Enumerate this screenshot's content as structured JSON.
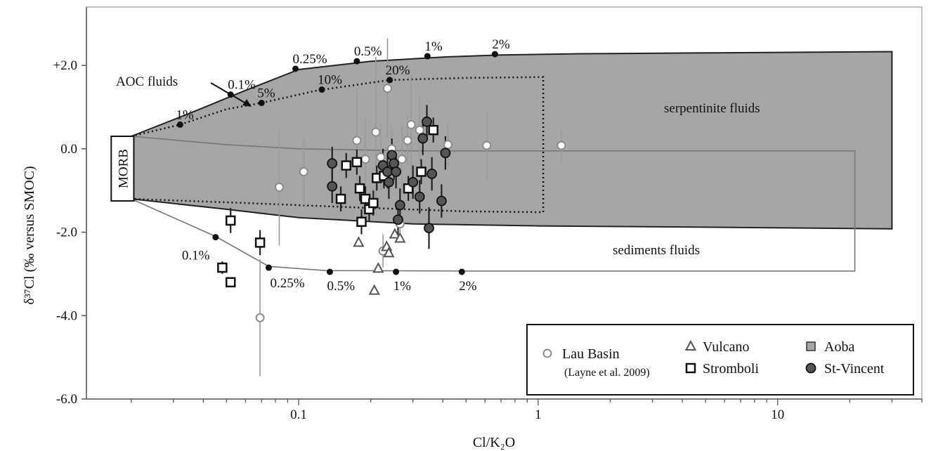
{
  "chart_data": {
    "type": "scatter",
    "xscale": "log",
    "xlim": [
      0.013,
      40
    ],
    "ylim": [
      -6.0,
      3.4
    ],
    "xlabel": "Cl/K₂O",
    "ylabel": "δ³⁷Cl (‰ versus SMOC)",
    "x_ticks": [
      {
        "value": 0.1,
        "label": "0.1"
      },
      {
        "value": 1,
        "label": "1"
      },
      {
        "value": 10,
        "label": "10"
      }
    ],
    "y_ticks": [
      {
        "value": 2.0,
        "label": "+2.0"
      },
      {
        "value": 0.0,
        "label": "0.0"
      },
      {
        "value": -2.0,
        "label": "-2.0"
      },
      {
        "value": -4.0,
        "label": "-4.0"
      },
      {
        "value": -6.0,
        "label": "-6.0"
      }
    ],
    "morb_label": "MORB",
    "morb_box": {
      "x": [
        0.0165,
        0.0205
      ],
      "y": [
        -1.25,
        0.3
      ]
    },
    "regions": [
      {
        "name": "serpentinite fluids",
        "label": "serpentinite fluids",
        "fill": "#a6a6a6",
        "upper": [
          [
            0.02,
            0.3
          ],
          [
            0.035,
            0.85
          ],
          [
            0.06,
            1.4
          ],
          [
            0.1,
            1.9
          ],
          [
            0.2,
            2.1
          ],
          [
            0.4,
            2.2
          ],
          [
            0.7,
            2.25
          ],
          [
            1.5,
            2.28
          ],
          [
            5,
            2.3
          ],
          [
            30,
            2.33
          ]
        ],
        "lower": [
          [
            0.02,
            -1.2
          ],
          [
            0.05,
            -1.45
          ],
          [
            0.1,
            -1.65
          ],
          [
            0.3,
            -1.8
          ],
          [
            1,
            -1.85
          ],
          [
            5,
            -1.88
          ],
          [
            30,
            -1.92
          ]
        ]
      },
      {
        "name": "AOC fluids",
        "label": "AOC fluids",
        "upper": [
          [
            0.02,
            0.3
          ],
          [
            0.032,
            0.58
          ],
          [
            0.05,
            0.95
          ],
          [
            0.07,
            1.1
          ],
          [
            0.12,
            1.4
          ],
          [
            0.24,
            1.65
          ],
          [
            0.5,
            1.7
          ],
          [
            1.05,
            1.72
          ]
        ],
        "lower": [
          [
            0.02,
            -1.2
          ],
          [
            0.06,
            -1.3
          ],
          [
            0.2,
            -1.42
          ],
          [
            0.5,
            -1.5
          ],
          [
            1.05,
            -1.52
          ]
        ]
      },
      {
        "name": "sediments fluids",
        "label": "sediments fluids",
        "upper": [
          [
            0.02,
            0.3
          ],
          [
            0.05,
            0.1
          ],
          [
            0.1,
            0.0
          ],
          [
            0.3,
            -0.05
          ],
          [
            1,
            -0.05
          ],
          [
            21,
            -0.05
          ]
        ],
        "lower": [
          [
            0.02,
            -1.2
          ],
          [
            0.045,
            -2.1
          ],
          [
            0.075,
            -2.82
          ],
          [
            0.13,
            -2.92
          ],
          [
            0.5,
            -2.93
          ],
          [
            21,
            -2.93
          ]
        ]
      }
    ],
    "mixing_points": [
      {
        "curve": "serpentinite",
        "label": "0.1%",
        "x": 0.052,
        "y": 1.3
      },
      {
        "curve": "serpentinite",
        "label": "0.25%",
        "x": 0.097,
        "y": 1.92
      },
      {
        "curve": "serpentinite",
        "label": "0.5%",
        "x": 0.175,
        "y": 2.1
      },
      {
        "curve": "serpentinite",
        "label": "1%",
        "x": 0.345,
        "y": 2.22
      },
      {
        "curve": "serpentinite",
        "label": "2%",
        "x": 0.66,
        "y": 2.27
      },
      {
        "curve": "AOC",
        "label": "1%",
        "x": 0.032,
        "y": 0.58
      },
      {
        "curve": "AOC",
        "label": "5%",
        "x": 0.07,
        "y": 1.1
      },
      {
        "curve": "AOC",
        "label": "10%",
        "x": 0.125,
        "y": 1.42
      },
      {
        "curve": "AOC",
        "label": "20%",
        "x": 0.24,
        "y": 1.65
      },
      {
        "curve": "sediments",
        "label": "0.1%",
        "x": 0.045,
        "y": -2.12
      },
      {
        "curve": "sediments",
        "label": "0.25%",
        "x": 0.075,
        "y": -2.85
      },
      {
        "curve": "sediments",
        "label": "0.5%",
        "x": 0.135,
        "y": -2.95
      },
      {
        "curve": "sediments",
        "label": "1%",
        "x": 0.255,
        "y": -2.95
      },
      {
        "curve": "sediments",
        "label": "2%",
        "x": 0.48,
        "y": -2.95
      }
    ],
    "series": [
      {
        "name": "Lau Basin",
        "note": "(Layne et al. 2009)",
        "marker": "circle-open",
        "color": "#8c8c8c",
        "points": [
          {
            "x": 0.069,
            "y": -4.05,
            "err": 1.4
          },
          {
            "x": 0.083,
            "y": -0.92,
            "err": 1.4
          },
          {
            "x": 0.105,
            "y": -0.55,
            "err": 0.8
          },
          {
            "x": 0.175,
            "y": 0.2,
            "err": 1.2
          },
          {
            "x": 0.19,
            "y": -0.25,
            "err": 1.0
          },
          {
            "x": 0.21,
            "y": 0.4,
            "err": 1.8
          },
          {
            "x": 0.22,
            "y": -0.2,
            "err": 0.8
          },
          {
            "x": 0.225,
            "y": -2.45,
            "err": 0.4
          },
          {
            "x": 0.235,
            "y": 1.45,
            "err": 1.2
          },
          {
            "x": 0.245,
            "y": 0.0,
            "err": 0.5
          },
          {
            "x": 0.265,
            "y": -1.8,
            "err": 0.4
          },
          {
            "x": 0.27,
            "y": -0.25,
            "err": 0.8
          },
          {
            "x": 0.285,
            "y": 0.2,
            "err": 0.6
          },
          {
            "x": 0.295,
            "y": 0.58,
            "err": 1.2
          },
          {
            "x": 0.32,
            "y": 0.45,
            "err": 0.8
          },
          {
            "x": 0.42,
            "y": 0.1,
            "err": 0.5
          },
          {
            "x": 0.61,
            "y": 0.08,
            "err": 0.8
          },
          {
            "x": 1.25,
            "y": 0.08,
            "err": 0.4
          }
        ]
      },
      {
        "name": "Vulcano",
        "marker": "triangle-open",
        "color": "#555555",
        "points": [
          {
            "x": 0.178,
            "y": -2.25
          },
          {
            "x": 0.207,
            "y": -3.4
          },
          {
            "x": 0.215,
            "y": -2.87
          },
          {
            "x": 0.233,
            "y": -2.35
          },
          {
            "x": 0.238,
            "y": -2.5
          },
          {
            "x": 0.252,
            "y": -2.05
          },
          {
            "x": 0.265,
            "y": -2.15
          }
        ]
      },
      {
        "name": "Stromboli",
        "marker": "square-open",
        "color": "#111111",
        "points": [
          {
            "x": 0.048,
            "y": -2.85,
            "err": 0.15
          },
          {
            "x": 0.052,
            "y": -3.2,
            "err": 0.1
          },
          {
            "x": 0.052,
            "y": -1.72,
            "err": 0.3
          },
          {
            "x": 0.069,
            "y": -2.25,
            "err": 0.3
          },
          {
            "x": 0.15,
            "y": -1.2,
            "err": 0.3
          },
          {
            "x": 0.158,
            "y": -0.4,
            "err": 0.3
          },
          {
            "x": 0.175,
            "y": -0.32,
            "err": 0.3
          },
          {
            "x": 0.18,
            "y": -0.95,
            "err": 0.3
          },
          {
            "x": 0.183,
            "y": -1.75,
            "err": 0.3
          },
          {
            "x": 0.19,
            "y": -1.2,
            "err": 0.3
          },
          {
            "x": 0.197,
            "y": -1.45,
            "err": 0.3
          },
          {
            "x": 0.205,
            "y": -1.3,
            "err": 0.3
          },
          {
            "x": 0.212,
            "y": -0.7,
            "err": 0.3
          },
          {
            "x": 0.227,
            "y": -0.65,
            "err": 0.3
          },
          {
            "x": 0.287,
            "y": -0.95,
            "err": 0.3
          },
          {
            "x": 0.325,
            "y": -0.55,
            "err": 0.3
          },
          {
            "x": 0.365,
            "y": 0.45,
            "err": 0.3
          }
        ]
      },
      {
        "name": "Aoba",
        "marker": "square-filled",
        "color": "#a6a6a6",
        "points": []
      },
      {
        "name": "St-Vincent",
        "marker": "circle-filled",
        "color": "#555555",
        "points": [
          {
            "x": 0.138,
            "y": -0.35,
            "err": 0.4
          },
          {
            "x": 0.138,
            "y": -0.9,
            "err": 0.4
          },
          {
            "x": 0.225,
            "y": -0.4,
            "err": 0.4
          },
          {
            "x": 0.235,
            "y": -0.55,
            "err": 0.4
          },
          {
            "x": 0.238,
            "y": -0.8,
            "err": 0.4
          },
          {
            "x": 0.245,
            "y": -0.15,
            "err": 0.4
          },
          {
            "x": 0.25,
            "y": -0.35,
            "err": 0.4
          },
          {
            "x": 0.255,
            "y": -0.55,
            "err": 0.4
          },
          {
            "x": 0.26,
            "y": -1.7,
            "err": 0.4
          },
          {
            "x": 0.265,
            "y": -1.35,
            "err": 0.4
          },
          {
            "x": 0.3,
            "y": -0.8,
            "err": 0.4
          },
          {
            "x": 0.32,
            "y": -1.15,
            "err": 0.4
          },
          {
            "x": 0.33,
            "y": 0.25,
            "err": 0.4
          },
          {
            "x": 0.343,
            "y": 0.65,
            "err": 0.4
          },
          {
            "x": 0.35,
            "y": -1.9,
            "err": 0.5
          },
          {
            "x": 0.36,
            "y": -0.6,
            "err": 0.4
          },
          {
            "x": 0.395,
            "y": -1.25,
            "err": 0.4
          },
          {
            "x": 0.41,
            "y": -0.1,
            "err": 0.4
          }
        ]
      }
    ],
    "legend": {
      "placement": "bottom-right",
      "entries": [
        {
          "label": "Lau Basin",
          "sub": "(Layne et al. 2009)",
          "marker": "circle-open"
        },
        {
          "label": "Vulcano",
          "marker": "triangle-open"
        },
        {
          "label": "Stromboli",
          "marker": "square-open"
        },
        {
          "label": "Aoba",
          "marker": "square-filled"
        },
        {
          "label": "St-Vincent",
          "marker": "circle-filled"
        }
      ]
    }
  }
}
